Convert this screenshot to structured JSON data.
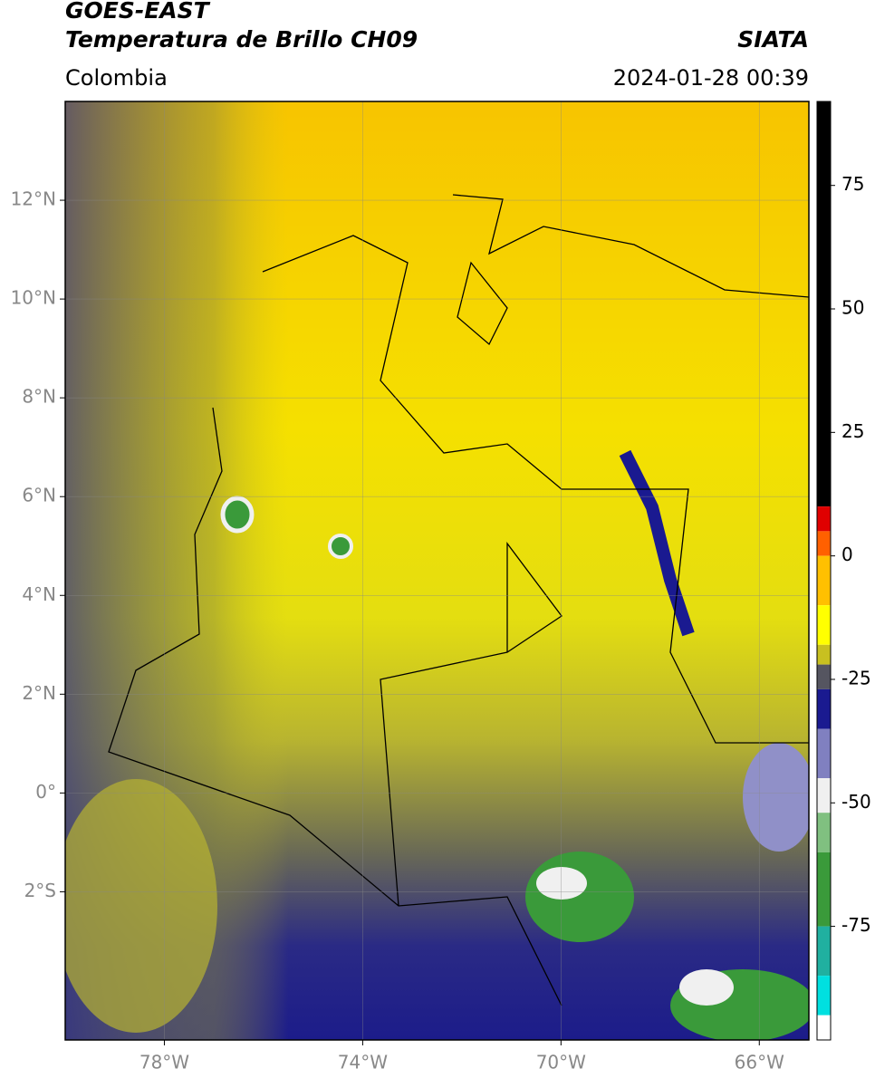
{
  "header": {
    "title": "GOES-EAST",
    "subtitle": "Temperatura de Brillo CH09",
    "source": "SIATA",
    "region": "Colombia",
    "datetime": "2024-01-28 00:39"
  },
  "map": {
    "xlim": [
      -80,
      -65
    ],
    "ylim": [
      -5,
      14
    ],
    "xticks": [
      {
        "value": -78,
        "label": "78°W"
      },
      {
        "value": -74,
        "label": "74°W"
      },
      {
        "value": -70,
        "label": "70°W"
      },
      {
        "value": -66,
        "label": "66°W"
      }
    ],
    "yticks": [
      {
        "value": 12,
        "label": "12°N"
      },
      {
        "value": 10,
        "label": "10°N"
      },
      {
        "value": 8,
        "label": "8°N"
      },
      {
        "value": 6,
        "label": "6°N"
      },
      {
        "value": 4,
        "label": "4°N"
      },
      {
        "value": 2,
        "label": "2°N"
      },
      {
        "value": 0,
        "label": "0°"
      },
      {
        "value": -2,
        "label": "2°S"
      }
    ]
  },
  "colorbar": {
    "lim": [
      -98,
      92
    ],
    "ticks": [
      75,
      50,
      25,
      0,
      -25,
      -50,
      -75
    ],
    "segments": [
      {
        "from": 10,
        "to": 92,
        "color": "#000000"
      },
      {
        "from": 5,
        "to": 10,
        "color": "#e00000"
      },
      {
        "from": 0,
        "to": 5,
        "color": "#ff6000"
      },
      {
        "from": -10,
        "to": 0,
        "color": "#ffc000"
      },
      {
        "from": -18,
        "to": -10,
        "color": "#ffff00"
      },
      {
        "from": -22,
        "to": -18,
        "color": "#c8c020"
      },
      {
        "from": -27,
        "to": -22,
        "color": "#555560"
      },
      {
        "from": -35,
        "to": -27,
        "color": "#1a1a90"
      },
      {
        "from": -45,
        "to": -35,
        "color": "#8080c0"
      },
      {
        "from": -52,
        "to": -45,
        "color": "#f0f0f0"
      },
      {
        "from": -60,
        "to": -52,
        "color": "#80c080"
      },
      {
        "from": -75,
        "to": -60,
        "color": "#3a9a3a"
      },
      {
        "from": -85,
        "to": -75,
        "color": "#20b0a0"
      },
      {
        "from": -93,
        "to": -85,
        "color": "#00e0e0"
      },
      {
        "from": -98,
        "to": -93,
        "color": "#ffffff"
      }
    ]
  }
}
